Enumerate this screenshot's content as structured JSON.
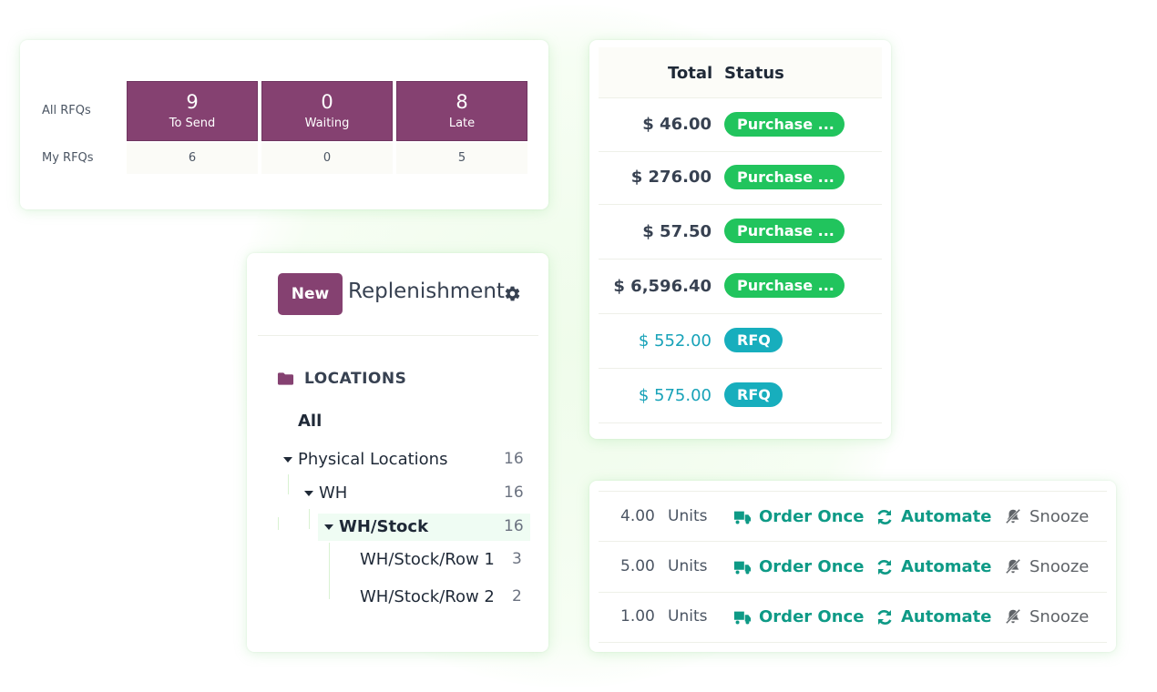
{
  "rfq": {
    "row_labels": {
      "all": "All RFQs",
      "my": "My RFQs"
    },
    "tiles": [
      {
        "count": "9",
        "label": "To Send",
        "my": "6"
      },
      {
        "count": "0",
        "label": "Waiting",
        "my": "0"
      },
      {
        "count": "8",
        "label": "Late",
        "my": "5"
      }
    ]
  },
  "replenishment": {
    "new_label": "New",
    "title": "Replenishment",
    "section_title": "LOCATIONS",
    "tree": {
      "all": "All",
      "physical": {
        "label": "Physical Locations",
        "count": "16"
      },
      "wh": {
        "label": "WH",
        "count": "16"
      },
      "stock": {
        "label": "WH/Stock",
        "count": "16"
      },
      "row1": {
        "label": "WH/Stock/Row 1",
        "count": "3"
      },
      "row2": {
        "label": "WH/Stock/Row 2",
        "count": "2"
      }
    }
  },
  "orders": {
    "headers": {
      "total": "Total",
      "status": "Status"
    },
    "rows": [
      {
        "total": "$ 46.00",
        "status": "Purchase ..."
      },
      {
        "total": "$ 276.00",
        "status": "Purchase ..."
      },
      {
        "total": "$ 57.50",
        "status": "Purchase ..."
      },
      {
        "total": "$ 6,596.40",
        "status": "Purchase ..."
      },
      {
        "total": "$ 552.00",
        "status": "RFQ"
      },
      {
        "total": "$ 575.00",
        "status": "RFQ"
      }
    ]
  },
  "actions": {
    "labels": {
      "order_once": "Order Once",
      "automate": "Automate",
      "snooze": "Snooze"
    },
    "rows": [
      {
        "qty": "4.00",
        "unit": "Units"
      },
      {
        "qty": "5.00",
        "unit": "Units"
      },
      {
        "qty": "1.00",
        "unit": "Units"
      }
    ]
  },
  "colors": {
    "brand": "#854171",
    "purchase_badge": "#21c45d",
    "rfq_badge": "#17aebd",
    "action_teal": "#0e9a86"
  },
  "icons": [
    "gear-icon",
    "folder-icon",
    "truck-icon",
    "refresh-icon",
    "bell-slash-icon"
  ]
}
